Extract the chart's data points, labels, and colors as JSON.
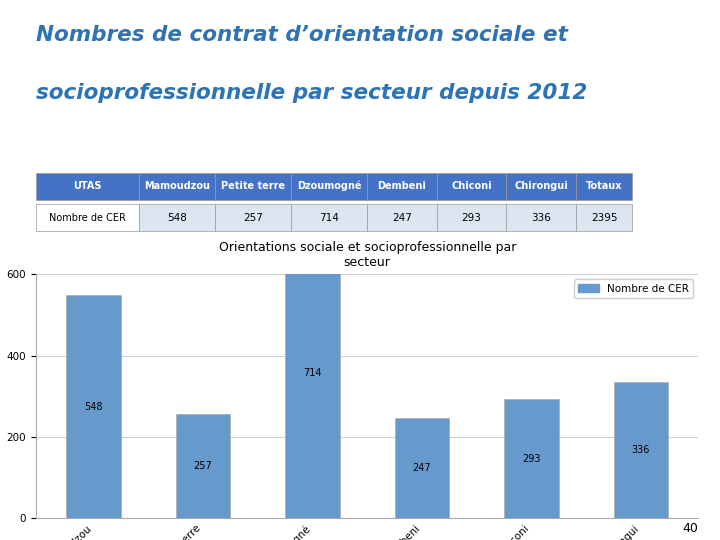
{
  "title_line1": "Nombres de contrat d’orientation sociale et",
  "title_line2": "socioprofessionnelle par secteur depuis 2012",
  "title_color": "#2E74B5",
  "table_headers": [
    "UTAS",
    "Mamoudzou",
    "Petite terre",
    "Dzoumogné",
    "Dembeni",
    "Chiconi",
    "Chirongui",
    "Totaux"
  ],
  "table_row_label": "Nombre de CER",
  "table_values": [
    548,
    257,
    714,
    247,
    293,
    336,
    2395
  ],
  "chart_title": "Orientations sociale et socioprofessionnelle par\nsecteur",
  "categories": [
    "Mamoudzou",
    "Petite terre",
    "Dzoumogné",
    "Dembeni",
    "Chiconi",
    "Chirongui"
  ],
  "values": [
    548,
    257,
    714,
    247,
    293,
    336
  ],
  "bar_color": "#6699CC",
  "legend_label": "Nombre de CER",
  "ylim": [
    0,
    600
  ],
  "yticks": [
    0,
    200,
    400,
    600
  ],
  "page_number": "40",
  "background_color": "#FFFFFF",
  "header_bg": "#4472C4",
  "header_text_color": "#FFFFFF",
  "row_bg": "#FFFFFF",
  "row_alt_bg": "#DCE6F1"
}
